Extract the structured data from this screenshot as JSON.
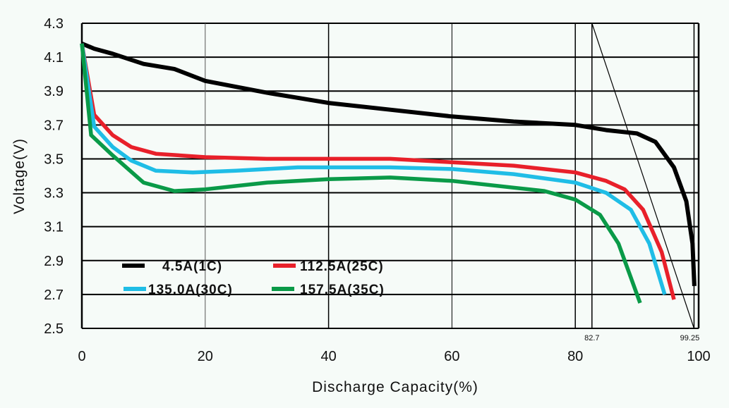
{
  "chart_data": {
    "type": "line",
    "title": "",
    "xlabel": "Discharge Capacity(%)",
    "ylabel": "Voltage(V)",
    "xlim": [
      0,
      100
    ],
    "ylim": [
      2.5,
      4.3
    ],
    "xticks": [
      "0",
      "20",
      "40",
      "60",
      "80",
      "100"
    ],
    "xtick_values": [
      0,
      20,
      40,
      60,
      80,
      100
    ],
    "yticks": [
      "2.5",
      "2.7",
      "2.9",
      "3.1",
      "3.3",
      "3.5",
      "3.7",
      "3.9",
      "4.1",
      "4.3"
    ],
    "ytick_values": [
      2.5,
      2.7,
      2.9,
      3.1,
      3.3,
      3.5,
      3.7,
      3.9,
      4.1,
      4.3
    ],
    "grid": true,
    "annotations": [
      {
        "text": "82.7",
        "x": 82.7
      },
      {
        "text": "99.25",
        "x": 99.25
      }
    ],
    "tangent_line": {
      "from": [
        82.7,
        4.3
      ],
      "to": [
        99.25,
        2.5
      ]
    },
    "legend_position": "lower-left",
    "series": [
      {
        "name": "4.5A(1C)",
        "color": "#000000",
        "x": [
          0,
          2,
          5,
          10,
          15,
          20,
          30,
          40,
          50,
          60,
          70,
          80,
          85,
          90,
          93,
          96,
          98,
          99,
          99.3
        ],
        "y": [
          4.18,
          4.15,
          4.12,
          4.06,
          4.03,
          3.96,
          3.89,
          3.83,
          3.79,
          3.75,
          3.72,
          3.7,
          3.67,
          3.65,
          3.6,
          3.45,
          3.25,
          3.0,
          2.75
        ]
      },
      {
        "name": "112.5A(25C)",
        "color": "#e8202a",
        "x": [
          0,
          2,
          5,
          8,
          12,
          20,
          30,
          50,
          60,
          70,
          80,
          85,
          88,
          91,
          94,
          96
        ],
        "y": [
          4.18,
          3.76,
          3.64,
          3.57,
          3.53,
          3.51,
          3.5,
          3.5,
          3.48,
          3.46,
          3.42,
          3.37,
          3.32,
          3.2,
          2.95,
          2.67
        ]
      },
      {
        "name": "135.0A(30C)",
        "color": "#1fbde6",
        "x": [
          0,
          2,
          5,
          8,
          12,
          18,
          25,
          35,
          50,
          60,
          70,
          80,
          85,
          89,
          92,
          94.5
        ],
        "y": [
          4.18,
          3.69,
          3.57,
          3.49,
          3.43,
          3.42,
          3.43,
          3.45,
          3.45,
          3.44,
          3.41,
          3.36,
          3.3,
          3.2,
          3.0,
          2.7
        ]
      },
      {
        "name": "157.5A(35C)",
        "color": "#0a9a48",
        "x": [
          0,
          1.5,
          5,
          10,
          15,
          20,
          30,
          40,
          50,
          60,
          70,
          75,
          80,
          84,
          87,
          89,
          90.5
        ],
        "y": [
          4.18,
          3.64,
          3.52,
          3.36,
          3.31,
          3.32,
          3.36,
          3.38,
          3.39,
          3.37,
          3.33,
          3.31,
          3.26,
          3.17,
          3.0,
          2.8,
          2.65
        ]
      }
    ]
  }
}
